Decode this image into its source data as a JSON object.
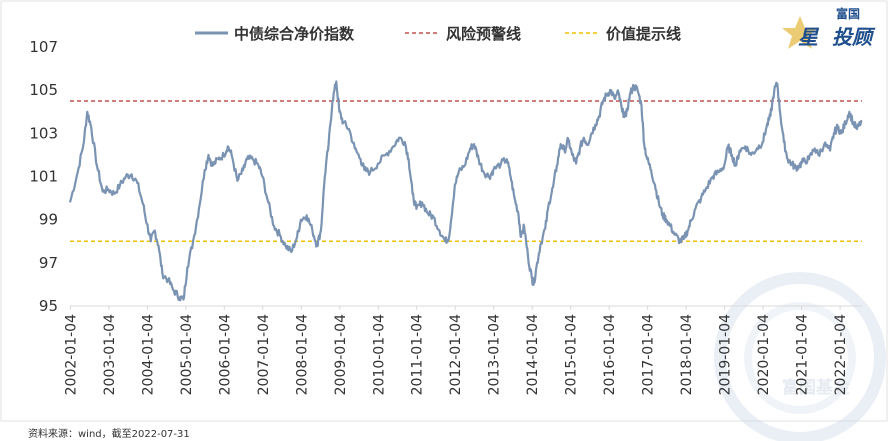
{
  "legend": {
    "index_label": "中债综合净价指数",
    "warning_label": "风险预警线",
    "value_label": "价值提示线"
  },
  "brand": {
    "top": "富国",
    "star": "星",
    "main": "投顾",
    "watermark": "富国基金"
  },
  "source": "资料来源：wind，截至2022-07-31",
  "colors": {
    "series": "#7a93b2",
    "warning": "#c0504d",
    "value": "#f0c000",
    "axis": "#d9d9d9"
  },
  "chart_data": {
    "type": "line",
    "title": "",
    "xlabel": "",
    "ylabel": "",
    "ylim": [
      95,
      107
    ],
    "yticks": [
      95,
      97,
      99,
      101,
      103,
      105,
      107
    ],
    "xlim": [
      2002.0,
      2022.58
    ],
    "xticks": [
      "2002-01-04",
      "2003-01-04",
      "2004-01-04",
      "2005-01-04",
      "2006-01-04",
      "2007-01-04",
      "2008-01-04",
      "2009-01-04",
      "2010-01-04",
      "2011-01-04",
      "2012-01-04",
      "2013-01-04",
      "2014-01-04",
      "2015-01-04",
      "2016-01-04",
      "2017-01-04",
      "2018-01-04",
      "2019-01-04",
      "2020-01-04",
      "2021-01-04",
      "2022-01-04"
    ],
    "reference_lines": [
      {
        "name": "风险预警线",
        "y": 104.5,
        "style": "dashed"
      },
      {
        "name": "价值提示线",
        "y": 98.0,
        "style": "dashed"
      }
    ],
    "series": [
      {
        "name": "中债综合净价指数",
        "points": [
          [
            2002.0,
            99.8
          ],
          [
            2002.2,
            101.2
          ],
          [
            2002.35,
            102.5
          ],
          [
            2002.45,
            104.0
          ],
          [
            2002.55,
            103.3
          ],
          [
            2002.7,
            101.5
          ],
          [
            2002.85,
            100.3
          ],
          [
            2003.0,
            100.4
          ],
          [
            2003.15,
            100.2
          ],
          [
            2003.3,
            100.6
          ],
          [
            2003.45,
            101.0
          ],
          [
            2003.6,
            101.1
          ],
          [
            2003.75,
            100.7
          ],
          [
            2003.9,
            99.7
          ],
          [
            2004.0,
            98.8
          ],
          [
            2004.1,
            98.0
          ],
          [
            2004.2,
            98.5
          ],
          [
            2004.3,
            97.8
          ],
          [
            2004.4,
            96.5
          ],
          [
            2004.55,
            96.2
          ],
          [
            2004.7,
            95.7
          ],
          [
            2004.85,
            95.4
          ],
          [
            2004.95,
            95.3
          ],
          [
            2005.05,
            96.8
          ],
          [
            2005.2,
            98.0
          ],
          [
            2005.35,
            99.5
          ],
          [
            2005.5,
            101.3
          ],
          [
            2005.6,
            102.0
          ],
          [
            2005.7,
            101.5
          ],
          [
            2005.85,
            101.8
          ],
          [
            2006.0,
            102.0
          ],
          [
            2006.1,
            102.4
          ],
          [
            2006.2,
            102.0
          ],
          [
            2006.35,
            100.8
          ],
          [
            2006.5,
            101.3
          ],
          [
            2006.6,
            101.8
          ],
          [
            2006.75,
            101.8
          ],
          [
            2006.9,
            101.5
          ],
          [
            2007.0,
            101.0
          ],
          [
            2007.15,
            99.8
          ],
          [
            2007.3,
            98.7
          ],
          [
            2007.45,
            98.3
          ],
          [
            2007.6,
            97.8
          ],
          [
            2007.75,
            97.5
          ],
          [
            2007.9,
            98.2
          ],
          [
            2008.0,
            99.0
          ],
          [
            2008.15,
            99.2
          ],
          [
            2008.3,
            98.5
          ],
          [
            2008.42,
            97.8
          ],
          [
            2008.52,
            98.5
          ],
          [
            2008.62,
            101.0
          ],
          [
            2008.72,
            102.5
          ],
          [
            2008.82,
            104.5
          ],
          [
            2008.92,
            105.4
          ],
          [
            2009.0,
            104.0
          ],
          [
            2009.1,
            103.5
          ],
          [
            2009.25,
            103.2
          ],
          [
            2009.4,
            102.3
          ],
          [
            2009.55,
            101.8
          ],
          [
            2009.65,
            101.3
          ],
          [
            2009.8,
            101.2
          ],
          [
            2010.0,
            101.6
          ],
          [
            2010.2,
            102.0
          ],
          [
            2010.4,
            102.4
          ],
          [
            2010.55,
            102.8
          ],
          [
            2010.7,
            102.6
          ],
          [
            2010.8,
            101.8
          ],
          [
            2010.9,
            100.2
          ],
          [
            2011.0,
            99.5
          ],
          [
            2011.15,
            99.8
          ],
          [
            2011.3,
            99.3
          ],
          [
            2011.45,
            99.1
          ],
          [
            2011.6,
            98.5
          ],
          [
            2011.75,
            98.0
          ],
          [
            2011.85,
            98.2
          ],
          [
            2012.0,
            100.6
          ],
          [
            2012.1,
            101.2
          ],
          [
            2012.25,
            101.5
          ],
          [
            2012.4,
            102.3
          ],
          [
            2012.5,
            102.5
          ],
          [
            2012.62,
            101.8
          ],
          [
            2012.75,
            101.2
          ],
          [
            2012.9,
            101.0
          ],
          [
            2013.0,
            101.3
          ],
          [
            2013.2,
            101.6
          ],
          [
            2013.35,
            101.8
          ],
          [
            2013.45,
            101.0
          ],
          [
            2013.55,
            100.0
          ],
          [
            2013.65,
            99.3
          ],
          [
            2013.72,
            98.2
          ],
          [
            2013.8,
            98.7
          ],
          [
            2013.9,
            97.3
          ],
          [
            2014.0,
            96.3
          ],
          [
            2014.05,
            96.0
          ],
          [
            2014.12,
            96.8
          ],
          [
            2014.22,
            97.8
          ],
          [
            2014.35,
            98.6
          ],
          [
            2014.45,
            99.8
          ],
          [
            2014.55,
            100.5
          ],
          [
            2014.65,
            101.5
          ],
          [
            2014.75,
            102.5
          ],
          [
            2014.85,
            102.2
          ],
          [
            2014.95,
            102.7
          ],
          [
            2015.05,
            102.0
          ],
          [
            2015.15,
            101.6
          ],
          [
            2015.25,
            102.3
          ],
          [
            2015.35,
            102.8
          ],
          [
            2015.45,
            102.5
          ],
          [
            2015.55,
            103.0
          ],
          [
            2015.65,
            103.4
          ],
          [
            2015.75,
            103.8
          ],
          [
            2015.85,
            104.5
          ],
          [
            2015.95,
            104.8
          ],
          [
            2016.05,
            105.0
          ],
          [
            2016.15,
            104.6
          ],
          [
            2016.25,
            104.9
          ],
          [
            2016.35,
            104.0
          ],
          [
            2016.45,
            103.8
          ],
          [
            2016.55,
            104.8
          ],
          [
            2016.65,
            105.2
          ],
          [
            2016.75,
            105.0
          ],
          [
            2016.85,
            104.3
          ],
          [
            2016.92,
            102.5
          ],
          [
            2017.0,
            101.8
          ],
          [
            2017.1,
            101.3
          ],
          [
            2017.2,
            100.6
          ],
          [
            2017.3,
            99.8
          ],
          [
            2017.4,
            99.2
          ],
          [
            2017.5,
            99.0
          ],
          [
            2017.6,
            98.7
          ],
          [
            2017.72,
            98.3
          ],
          [
            2017.85,
            98.0
          ],
          [
            2017.95,
            98.1
          ],
          [
            2018.05,
            98.5
          ],
          [
            2018.15,
            99.0
          ],
          [
            2018.25,
            99.5
          ],
          [
            2018.4,
            100.0
          ],
          [
            2018.55,
            100.5
          ],
          [
            2018.7,
            101.0
          ],
          [
            2018.85,
            101.2
          ],
          [
            2019.0,
            101.5
          ],
          [
            2019.1,
            102.4
          ],
          [
            2019.2,
            102.0
          ],
          [
            2019.3,
            101.5
          ],
          [
            2019.4,
            102.2
          ],
          [
            2019.55,
            102.4
          ],
          [
            2019.7,
            102.0
          ],
          [
            2019.85,
            102.3
          ],
          [
            2020.0,
            102.6
          ],
          [
            2020.1,
            103.3
          ],
          [
            2020.2,
            103.8
          ],
          [
            2020.3,
            105.0
          ],
          [
            2020.38,
            105.3
          ],
          [
            2020.45,
            104.0
          ],
          [
            2020.55,
            102.6
          ],
          [
            2020.65,
            101.8
          ],
          [
            2020.75,
            101.6
          ],
          [
            2020.85,
            101.4
          ],
          [
            2020.95,
            101.5
          ],
          [
            2021.05,
            101.7
          ],
          [
            2021.2,
            101.8
          ],
          [
            2021.35,
            102.3
          ],
          [
            2021.45,
            102.0
          ],
          [
            2021.6,
            102.5
          ],
          [
            2021.75,
            102.2
          ],
          [
            2021.85,
            103.0
          ],
          [
            2021.95,
            103.3
          ],
          [
            2022.05,
            103.0
          ],
          [
            2022.15,
            103.5
          ],
          [
            2022.25,
            104.0
          ],
          [
            2022.35,
            103.5
          ],
          [
            2022.45,
            103.2
          ],
          [
            2022.58,
            103.6
          ]
        ]
      }
    ]
  }
}
